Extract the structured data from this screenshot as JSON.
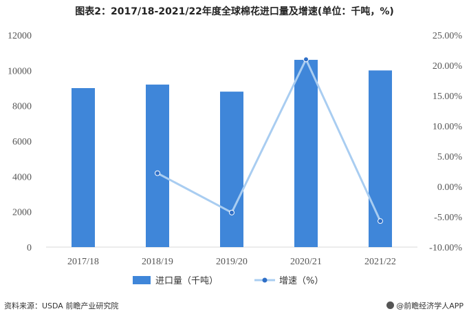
{
  "chart_data": {
    "type": "bar+line",
    "title": "图表2：2017/18-2021/22年度全球棉花进口量及增速(单位：千吨，%)",
    "categories": [
      "2017/18",
      "2018/19",
      "2019/20",
      "2020/21",
      "2021/22"
    ],
    "series": [
      {
        "name": "进口量（千吨）",
        "type": "bar",
        "axis": "left",
        "color": "#3f86d9",
        "values": [
          9000,
          9200,
          8800,
          10600,
          10000
        ]
      },
      {
        "name": "增速（%）",
        "type": "line",
        "axis": "right",
        "color": "#a9cdf1",
        "marker_color": "#2f6fc7",
        "values": [
          null,
          2.2,
          -4.3,
          21.0,
          -5.7
        ]
      }
    ],
    "y_left": {
      "ylim": [
        0,
        12000
      ],
      "ticks": [
        0,
        2000,
        4000,
        6000,
        8000,
        10000,
        12000
      ],
      "tick_labels": [
        "0",
        "2000",
        "4000",
        "6000",
        "8000",
        "10000",
        "12000"
      ]
    },
    "y_right": {
      "ylim": [
        -10,
        25
      ],
      "ticks": [
        -10,
        -5,
        0,
        5,
        10,
        15,
        20,
        25
      ],
      "tick_labels": [
        "-10.00%",
        "-5.00%",
        "0.00%",
        "5.00%",
        "10.00%",
        "15.00%",
        "20.00%",
        "25.00%"
      ]
    },
    "grid": false,
    "legend": "bottom"
  },
  "footer": {
    "source": "资料来源：USDA 前瞻产业研究院",
    "brand": "@前瞻经济学人APP"
  }
}
